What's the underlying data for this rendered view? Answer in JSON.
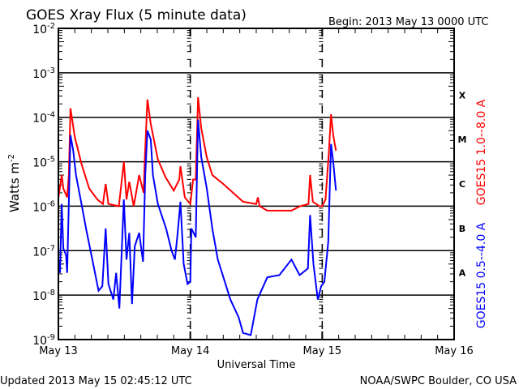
{
  "chart_data": {
    "type": "line",
    "title": "GOES Xray Flux (5 minute data)",
    "begin_label": "Begin:  2013 May 13 0000 UTC",
    "xlabel": "Universal Time",
    "ylabel": "Watts m",
    "ylabel_sup": "-2",
    "x_unit": "hours since 2013 May 13 0000 UTC",
    "xlim": [
      0,
      72
    ],
    "ylim_log10": [
      -9,
      -2
    ],
    "yscale": "log",
    "grid": "horizontal at each decade -3..-8",
    "x_ticks": [
      {
        "hour": 0,
        "label": "May 13"
      },
      {
        "hour": 24,
        "label": "May 14"
      },
      {
        "hour": 48,
        "label": "May 15"
      },
      {
        "hour": 72,
        "label": "May 16"
      }
    ],
    "y_ticks": [
      {
        "exp": -2,
        "base": "10",
        "sup": "-2"
      },
      {
        "exp": -3,
        "base": "10",
        "sup": "-3"
      },
      {
        "exp": -4,
        "base": "10",
        "sup": "-4"
      },
      {
        "exp": -5,
        "base": "10",
        "sup": "-5"
      },
      {
        "exp": -6,
        "base": "10",
        "sup": "-6"
      },
      {
        "exp": -7,
        "base": "10",
        "sup": "-7"
      },
      {
        "exp": -8,
        "base": "10",
        "sup": "-8"
      },
      {
        "exp": -9,
        "base": "10",
        "sup": "-9"
      }
    ],
    "flare_classes": [
      {
        "label": "X",
        "exp": -3.5
      },
      {
        "label": "M",
        "exp": -4.5
      },
      {
        "label": "C",
        "exp": -5.5
      },
      {
        "label": "B",
        "exp": -6.5
      },
      {
        "label": "A",
        "exp": -7.5
      }
    ],
    "series": [
      {
        "name": "GOES15 1.0--8.0 A",
        "color": "#ff0000",
        "points_hour_log10flux": [
          [
            0,
            -5.82
          ],
          [
            0.6,
            -5.3
          ],
          [
            0.9,
            -5.6
          ],
          [
            1.6,
            -5.8
          ],
          [
            1.9,
            -5.3
          ],
          [
            2.2,
            -3.8
          ],
          [
            3,
            -4.45
          ],
          [
            4.2,
            -5.05
          ],
          [
            5.6,
            -5.6
          ],
          [
            7.1,
            -5.85
          ],
          [
            8.1,
            -5.95
          ],
          [
            8.6,
            -5.5
          ],
          [
            9.1,
            -5.95
          ],
          [
            11,
            -6.0
          ],
          [
            11.9,
            -5.0
          ],
          [
            12.4,
            -5.85
          ],
          [
            12.9,
            -5.45
          ],
          [
            13.7,
            -6.0
          ],
          [
            14.7,
            -5.3
          ],
          [
            15.5,
            -5.7
          ],
          [
            15.7,
            -5.0
          ],
          [
            16.2,
            -3.6
          ],
          [
            16.8,
            -4.15
          ],
          [
            18.1,
            -4.95
          ],
          [
            19.5,
            -5.35
          ],
          [
            21,
            -5.65
          ],
          [
            22,
            -5.4
          ],
          [
            22.2,
            -5.1
          ],
          [
            23,
            -5.8
          ],
          [
            24,
            -5.95
          ],
          [
            24.5,
            -5.4
          ],
          [
            25,
            -5.4
          ],
          [
            25.4,
            -3.55
          ],
          [
            26,
            -4.25
          ],
          [
            27,
            -4.9
          ],
          [
            28,
            -5.3
          ],
          [
            30,
            -5.5
          ],
          [
            33.6,
            -5.9
          ],
          [
            36,
            -5.95
          ],
          [
            36.3,
            -5.8
          ],
          [
            36.6,
            -6.0
          ],
          [
            38,
            -6.1
          ],
          [
            42.4,
            -6.1
          ],
          [
            44,
            -6.0
          ],
          [
            45.5,
            -5.95
          ],
          [
            45.8,
            -5.3
          ],
          [
            46.3,
            -5.9
          ],
          [
            47.5,
            -6.0
          ],
          [
            48,
            -6.0
          ],
          [
            48.6,
            -5.85
          ],
          [
            49.2,
            -4.8
          ],
          [
            49.6,
            -3.93
          ],
          [
            50,
            -4.4
          ],
          [
            50.5,
            -4.75
          ]
        ]
      },
      {
        "name": "GOES15 0.5--4.0 A",
        "color": "#0000ff",
        "points_hour_log10flux": [
          [
            0,
            -7.2
          ],
          [
            0.3,
            -7.5
          ],
          [
            0.6,
            -5.95
          ],
          [
            0.9,
            -6.95
          ],
          [
            1.4,
            -7.1
          ],
          [
            1.6,
            -7.5
          ],
          [
            1.9,
            -5.9
          ],
          [
            2.2,
            -4.4
          ],
          [
            2.7,
            -4.75
          ],
          [
            3.2,
            -5.3
          ],
          [
            4.2,
            -5.95
          ],
          [
            5.1,
            -6.55
          ],
          [
            6.1,
            -7.15
          ],
          [
            7.3,
            -7.9
          ],
          [
            8,
            -7.8
          ],
          [
            8.6,
            -6.5
          ],
          [
            9.1,
            -7.75
          ],
          [
            10,
            -8.1
          ],
          [
            10.5,
            -7.5
          ],
          [
            11.1,
            -8.3
          ],
          [
            11.9,
            -5.85
          ],
          [
            12.4,
            -7.2
          ],
          [
            12.9,
            -6.6
          ],
          [
            13.4,
            -8.2
          ],
          [
            13.9,
            -6.9
          ],
          [
            14.7,
            -6.6
          ],
          [
            15.4,
            -7.25
          ],
          [
            15.8,
            -5.3
          ],
          [
            16.2,
            -4.3
          ],
          [
            16.8,
            -4.5
          ],
          [
            17.2,
            -5.3
          ],
          [
            18.1,
            -5.95
          ],
          [
            19.6,
            -6.5
          ],
          [
            20.6,
            -7.0
          ],
          [
            21.2,
            -7.2
          ],
          [
            21.7,
            -6.6
          ],
          [
            22.2,
            -5.9
          ],
          [
            22.8,
            -7.3
          ],
          [
            23.5,
            -7.75
          ],
          [
            24,
            -7.7
          ],
          [
            24.2,
            -6.5
          ],
          [
            25,
            -6.7
          ],
          [
            25.4,
            -4.05
          ],
          [
            26,
            -4.9
          ],
          [
            27,
            -5.6
          ],
          [
            28,
            -6.5
          ],
          [
            29,
            -7.2
          ],
          [
            31.3,
            -8.1
          ],
          [
            32.8,
            -8.5
          ],
          [
            33.6,
            -8.85
          ],
          [
            35,
            -8.9
          ],
          [
            36.2,
            -8.1
          ],
          [
            38,
            -7.6
          ],
          [
            40.2,
            -7.55
          ],
          [
            42.4,
            -7.2
          ],
          [
            43.9,
            -7.55
          ],
          [
            45.4,
            -7.4
          ],
          [
            45.8,
            -6.2
          ],
          [
            46.4,
            -7.3
          ],
          [
            47.2,
            -8.1
          ],
          [
            47.8,
            -7.8
          ],
          [
            48.4,
            -7.7
          ],
          [
            49.1,
            -6.8
          ],
          [
            49.6,
            -4.6
          ],
          [
            50,
            -5.0
          ],
          [
            50.5,
            -5.65
          ]
        ]
      }
    ]
  },
  "footer": {
    "updated": "Updated 2013 May 15 02:45:12 UTC",
    "credit": "NOAA/SWPC Boulder, CO USA"
  }
}
